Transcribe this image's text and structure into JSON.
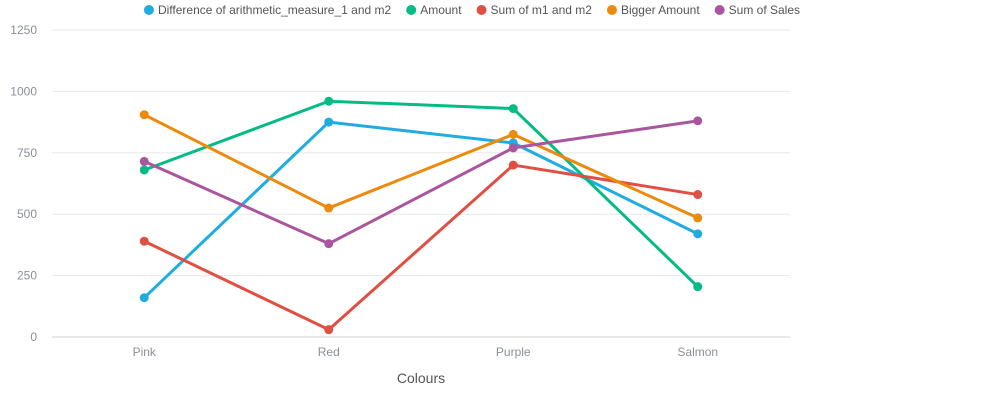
{
  "chart_data": {
    "type": "line",
    "xlabel": "Colours",
    "ylabel": "",
    "ylim": [
      0,
      1250
    ],
    "yticks": [
      0,
      250,
      500,
      750,
      1000,
      1250
    ],
    "ytick_labels": [
      "0",
      "250",
      "500",
      "750",
      "1000",
      "1250"
    ],
    "categories": [
      "Pink",
      "Red",
      "Purple",
      "Salmon"
    ],
    "grid": true,
    "legend_position": "top",
    "series": [
      {
        "name": "Difference of arithmetic_measure_1 and m2",
        "color": "#20acdf",
        "values": [
          160,
          875,
          790,
          420
        ]
      },
      {
        "name": "Amount",
        "color": "#04bb86",
        "values": [
          680,
          960,
          930,
          205
        ]
      },
      {
        "name": "Sum of m1 and m2",
        "color": "#e04f43",
        "values": [
          390,
          30,
          700,
          580
        ]
      },
      {
        "name": "Bigger Amount",
        "color": "#ec8a0c",
        "values": [
          905,
          525,
          825,
          485
        ]
      },
      {
        "name": "Sum of Sales",
        "color": "#a9569f",
        "values": [
          715,
          380,
          770,
          880
        ]
      }
    ]
  }
}
